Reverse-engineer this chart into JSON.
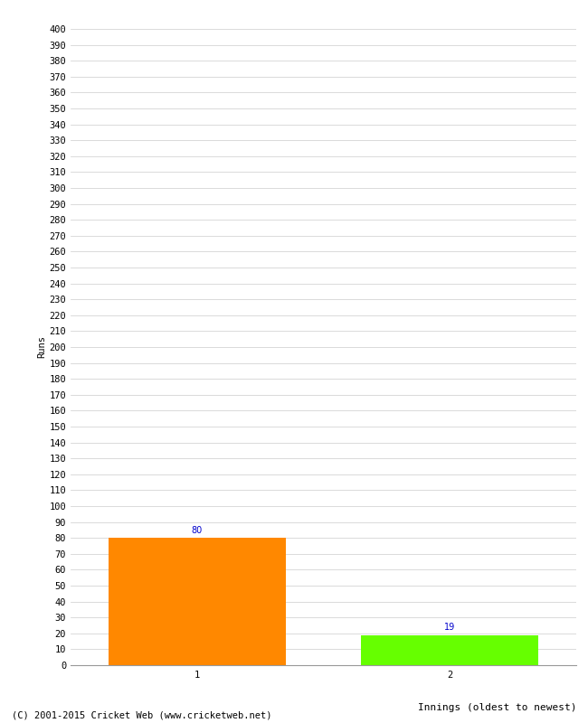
{
  "categories": [
    "1",
    "2"
  ],
  "values": [
    80,
    19
  ],
  "bar_colors": [
    "#FF8800",
    "#66FF00"
  ],
  "xlabel": "Innings (oldest to newest)",
  "ylabel": "Runs",
  "ylim": [
    0,
    400
  ],
  "ytick_step": 10,
  "bar_label_color": "#0000CC",
  "bar_label_fontsize": 7,
  "background_color": "#FFFFFF",
  "grid_color": "#CCCCCC",
  "tick_label_fontsize": 7.5,
  "xlabel_fontsize": 8,
  "ylabel_fontsize": 7.5,
  "footer_text": "(C) 2001-2015 Cricket Web (www.cricketweb.net)",
  "footer_fontsize": 7.5,
  "bar_positions": [
    0.25,
    0.75
  ],
  "bar_width": 0.35
}
